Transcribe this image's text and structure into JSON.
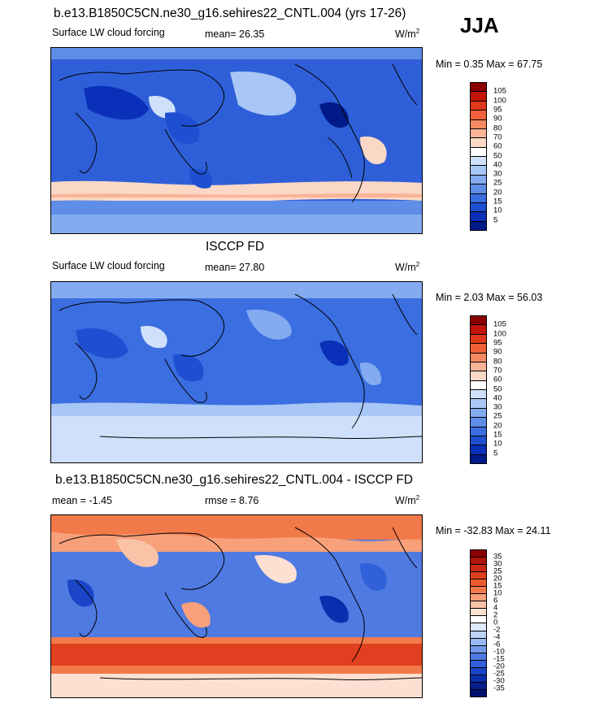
{
  "season": "JJA",
  "units": "W/m",
  "units_sup": "2",
  "panels": [
    {
      "title": "b.e13.B1850C5CN.ne30_g16.sehires22_CNTL.004 (yrs 17-26)",
      "variable": "Surface LW cloud forcing",
      "stat1": "mean=  26.35",
      "stat2": "",
      "minmax": "Min =   0.35 Max =  67.75",
      "levels": [
        "105",
        "100",
        "95",
        "90",
        "80",
        "70",
        "60",
        "50",
        "40",
        "30",
        "25",
        "20",
        "15",
        "10",
        "5"
      ],
      "colors": [
        "#8b0000",
        "#c1150b",
        "#e0381a",
        "#f0603a",
        "#f68a62",
        "#f9b497",
        "#fbd8c6",
        "#ffffff",
        "#cfe0fb",
        "#a8c6f6",
        "#84abf0",
        "#5f8ee8",
        "#3b6ee0",
        "#1e4fd2",
        "#0a2fb8",
        "#001a8a"
      ]
    },
    {
      "title": "ISCCP FD",
      "variable": "Surface LW cloud forcing",
      "stat1": "mean=  27.80",
      "stat2": "",
      "minmax": "Min =   2.03 Max =  56.03",
      "levels": [
        "105",
        "100",
        "95",
        "90",
        "80",
        "70",
        "60",
        "50",
        "40",
        "30",
        "25",
        "20",
        "15",
        "10",
        "5"
      ],
      "colors": [
        "#8b0000",
        "#c1150b",
        "#e0381a",
        "#f0603a",
        "#f68a62",
        "#f9b497",
        "#fbd8c6",
        "#ffffff",
        "#cfe0fb",
        "#a8c6f6",
        "#84abf0",
        "#5f8ee8",
        "#3b6ee0",
        "#1e4fd2",
        "#0a2fb8",
        "#001a8a"
      ]
    },
    {
      "title": "b.e13.B1850C5CN.ne30_g16.sehires22_CNTL.004 - ISCCP FD",
      "variable": "mean =  -1.45",
      "stat1": "rmse =   8.76",
      "stat2": "",
      "minmax": "Min = -32.83 Max =  24.11",
      "levels": [
        "35",
        "30",
        "25",
        "20",
        "15",
        "10",
        "6",
        "4",
        "2",
        "0",
        "-2",
        "-4",
        "-6",
        "-10",
        "-15",
        "-20",
        "-25",
        "-30",
        "-35"
      ],
      "colors": [
        "#8b0000",
        "#b0150a",
        "#cc2a14",
        "#e0401f",
        "#ec5a2e",
        "#f27a4a",
        "#f7a07a",
        "#fac3a8",
        "#fde0d2",
        "#ffffff",
        "#dde8fb",
        "#bcd2f7",
        "#98b8f2",
        "#7399ea",
        "#4f7ae2",
        "#3060da",
        "#1a45c8",
        "#0a2fae",
        "#03208e",
        "#001070"
      ]
    }
  ]
}
